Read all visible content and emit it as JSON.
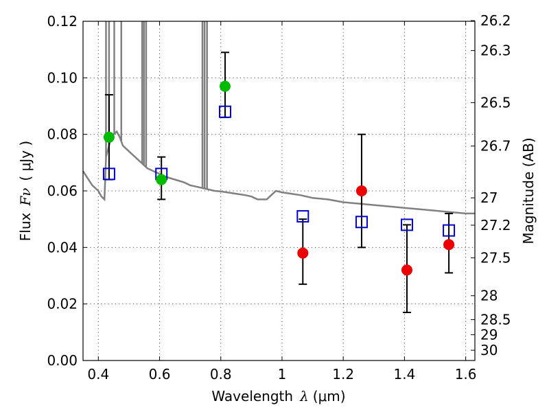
{
  "chart_data": {
    "type": "scatter",
    "xlabel_text": "Wavelength",
    "xlabel_symbol": "λ",
    "xlabel_unit": "(μm)",
    "ylabel_text": "Flux",
    "ylabel_symbol": "Fν",
    "ylabel_unit": "( μJy )",
    "y2label": "Magnitude (AB)",
    "xlim": [
      0.35,
      1.63
    ],
    "ylim": [
      0.0,
      0.12
    ],
    "x_ticks": [
      {
        "value": 0.4,
        "label": "0.4"
      },
      {
        "value": 0.6,
        "label": "0.6"
      },
      {
        "value": 0.8,
        "label": "0.8"
      },
      {
        "value": 1.0,
        "label": "1"
      },
      {
        "value": 1.2,
        "label": "1.2"
      },
      {
        "value": 1.4,
        "label": "1.4"
      },
      {
        "value": 1.6,
        "label": "1.6"
      }
    ],
    "y_ticks": [
      {
        "value": 0.0,
        "label": "0.00"
      },
      {
        "value": 0.02,
        "label": "0.02"
      },
      {
        "value": 0.04,
        "label": "0.04"
      },
      {
        "value": 0.06,
        "label": "0.06"
      },
      {
        "value": 0.08,
        "label": "0.08"
      },
      {
        "value": 0.1,
        "label": "0.10"
      },
      {
        "value": 0.12,
        "label": "0.12"
      }
    ],
    "y2_ticks": [
      {
        "value": 26.2,
        "label": "26.2"
      },
      {
        "value": 26.3,
        "label": "26.3"
      },
      {
        "value": 26.5,
        "label": "26.5"
      },
      {
        "value": 26.7,
        "label": "26.7"
      },
      {
        "value": 27.0,
        "label": "27"
      },
      {
        "value": 27.2,
        "label": "27.2"
      },
      {
        "value": 27.5,
        "label": "27.5"
      },
      {
        "value": 28.0,
        "label": "28"
      },
      {
        "value": 28.5,
        "label": "28.5"
      },
      {
        "value": 29.0,
        "label": "29"
      },
      {
        "value": 30.0,
        "label": "30"
      }
    ],
    "grid": true,
    "colors": {
      "green": "#00bb00",
      "red": "#ee0000",
      "blue_square": "#0000cc",
      "error_bar": "#000000",
      "model_line": "#808080"
    },
    "series": [
      {
        "marker": "square-open",
        "color": "#0000cc",
        "points": [
          {
            "x": 0.435,
            "y": 0.066
          },
          {
            "x": 0.606,
            "y": 0.066
          },
          {
            "x": 0.814,
            "y": 0.088
          },
          {
            "x": 1.068,
            "y": 0.051
          },
          {
            "x": 1.26,
            "y": 0.049
          },
          {
            "x": 1.408,
            "y": 0.048
          },
          {
            "x": 1.545,
            "y": 0.046
          }
        ]
      },
      {
        "marker": "circle",
        "color": "#00bb00",
        "points": [
          {
            "x": 0.435,
            "y": 0.079,
            "err_lo": 0.064,
            "err_hi": 0.094
          },
          {
            "x": 0.606,
            "y": 0.064,
            "err_lo": 0.057,
            "err_hi": 0.072
          },
          {
            "x": 0.814,
            "y": 0.097,
            "err_lo": 0.086,
            "err_hi": 0.109
          }
        ]
      },
      {
        "marker": "circle",
        "color": "#ee0000",
        "points": [
          {
            "x": 1.068,
            "y": 0.038,
            "err_lo": 0.027,
            "err_hi": 0.05
          },
          {
            "x": 1.26,
            "y": 0.06,
            "err_lo": 0.04,
            "err_hi": 0.08
          },
          {
            "x": 1.408,
            "y": 0.032,
            "err_lo": 0.017,
            "err_hi": 0.048
          },
          {
            "x": 1.545,
            "y": 0.041,
            "err_lo": 0.031,
            "err_hi": 0.052
          }
        ]
      }
    ],
    "model_spectrum": {
      "color": "#808080",
      "x": [
        0.35,
        0.38,
        0.4,
        0.41,
        0.42,
        0.425,
        0.43,
        0.44,
        0.45,
        0.46,
        0.47,
        0.48,
        0.5,
        0.52,
        0.54,
        0.55,
        0.56,
        0.58,
        0.6,
        0.62,
        0.65,
        0.68,
        0.7,
        0.72,
        0.74,
        0.76,
        0.78,
        0.8,
        0.82,
        0.85,
        0.88,
        0.9,
        0.92,
        0.95,
        0.96,
        0.97,
        0.98,
        1.0,
        1.03,
        1.06,
        1.1,
        1.15,
        1.2,
        1.25,
        1.3,
        1.35,
        1.4,
        1.45,
        1.5,
        1.55,
        1.6,
        1.63
      ],
      "y": [
        0.067,
        0.062,
        0.06,
        0.058,
        0.057,
        0.072,
        0.074,
        0.078,
        0.08,
        0.081,
        0.079,
        0.076,
        0.074,
        0.072,
        0.07,
        0.069,
        0.068,
        0.067,
        0.066,
        0.065,
        0.064,
        0.063,
        0.062,
        0.0615,
        0.061,
        0.0605,
        0.06,
        0.0598,
        0.0595,
        0.059,
        0.0585,
        0.058,
        0.057,
        0.057,
        0.058,
        0.059,
        0.06,
        0.0595,
        0.059,
        0.0585,
        0.0575,
        0.057,
        0.056,
        0.0555,
        0.055,
        0.0545,
        0.054,
        0.0535,
        0.053,
        0.0525,
        0.052,
        0.052
      ],
      "spikes": [
        {
          "x": 0.425,
          "y_top": 0.12
        },
        {
          "x": 0.435,
          "y_top": 0.12
        },
        {
          "x": 0.452,
          "y_top": 0.12
        },
        {
          "x": 0.475,
          "y_top": 0.12
        },
        {
          "x": 0.543,
          "y_top": 0.12
        },
        {
          "x": 0.549,
          "y_top": 0.12
        },
        {
          "x": 0.556,
          "y_top": 0.12
        },
        {
          "x": 0.74,
          "y_top": 0.12
        },
        {
          "x": 0.747,
          "y_top": 0.12
        },
        {
          "x": 0.755,
          "y_top": 0.12
        }
      ]
    }
  }
}
